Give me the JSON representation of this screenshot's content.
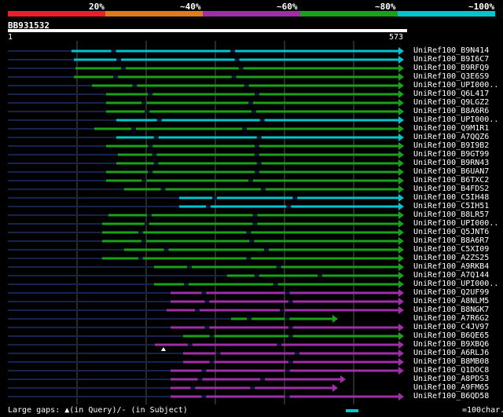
{
  "identity_bands": [
    {
      "label": "20%",
      "color": "#e8202a"
    },
    {
      "label": "~40%",
      "color": "#e07a1a"
    },
    {
      "label": "~60%",
      "color": "#a02ea8"
    },
    {
      "label": "~80%",
      "color": "#1aa11a"
    },
    {
      "label": "~100%",
      "color": "#00c4d0"
    }
  ],
  "query": {
    "id": "BB931532",
    "start": "1",
    "end": "573"
  },
  "hits": [
    {
      "name": "UniRef100_B9N414",
      "start": 91,
      "cls": "cyan"
    },
    {
      "name": "UniRef100_B9I6C7",
      "start": 94,
      "cls": "cyan"
    },
    {
      "name": "UniRef100_B9RFQ9",
      "start": 96,
      "cls": "green"
    },
    {
      "name": "UniRef100_Q3E6S9",
      "start": 94,
      "cls": "green"
    },
    {
      "name": "UniRef100_UPI000..",
      "start": 117,
      "cls": "green"
    },
    {
      "name": "UniRef100_Q6L417",
      "start": 135,
      "cls": "green"
    },
    {
      "name": "UniRef100_Q9LGZ2",
      "start": 135,
      "cls": "green"
    },
    {
      "name": "UniRef100_B8A6R6",
      "start": 135,
      "cls": "green"
    },
    {
      "name": "UniRef100_UPI000..",
      "start": 148,
      "cls": "cyan"
    },
    {
      "name": "UniRef100_Q9M1R1",
      "start": 120,
      "cls": "green"
    },
    {
      "name": "UniRef100_A7QQZ6",
      "start": 148,
      "cls": "cyan"
    },
    {
      "name": "UniRef100_B9I9B2",
      "start": 135,
      "cls": "green"
    },
    {
      "name": "UniRef100_B9GT99",
      "start": 150,
      "cls": "green"
    },
    {
      "name": "UniRef100_B9RN43",
      "start": 148,
      "cls": "green"
    },
    {
      "name": "UniRef100_B6UAN7",
      "start": 135,
      "cls": "green"
    },
    {
      "name": "UniRef100_B6TXC2",
      "start": 135,
      "cls": "green"
    },
    {
      "name": "UniRef100_B4FDS2",
      "start": 158,
      "cls": "green"
    },
    {
      "name": "UniRef100_C5IH48",
      "start": 228,
      "cls": "cyan"
    },
    {
      "name": "UniRef100_C5IH51",
      "start": 228,
      "cls": "cyan"
    },
    {
      "name": "UniRef100_B8LR57",
      "start": 138,
      "cls": "green"
    },
    {
      "name": "UniRef100_UPI000..",
      "start": 130,
      "cls": "green"
    },
    {
      "name": "UniRef100_Q5JNT6",
      "start": 130,
      "cls": "green"
    },
    {
      "name": "UniRef100_B8A6R7",
      "start": 130,
      "cls": "green"
    },
    {
      "name": "UniRef100_C5XI09",
      "start": 158,
      "cls": "green"
    },
    {
      "name": "UniRef100_A2ZS25",
      "start": 130,
      "cls": "green"
    },
    {
      "name": "UniRef100_A9RKB4",
      "start": 196,
      "cls": "green"
    },
    {
      "name": "UniRef100_A7Q144",
      "start": 289,
      "cls": "green"
    },
    {
      "name": "UniRef100_UPI000..",
      "start": 196,
      "cls": "green"
    },
    {
      "name": "UniRef100_Q2UF99",
      "start": 217,
      "cls": "purple"
    },
    {
      "name": "UniRef100_A8NLM5",
      "start": 217,
      "cls": "purple"
    },
    {
      "name": "UniRef100_B8NGK7",
      "start": 212,
      "cls": "purple"
    },
    {
      "name": "UniRef100_A7R6G2",
      "start": 294,
      "cls": "green",
      "end": 428
    },
    {
      "name": "UniRef100_C4JV97",
      "start": 217,
      "cls": "purple"
    },
    {
      "name": "UniRef100_B6QE65",
      "start": 233,
      "cls": "green"
    },
    {
      "name": "UniRef100_B9XBQ6",
      "start": 197,
      "cls": "purple",
      "gap": true
    },
    {
      "name": "UniRef100_A6RLJ6",
      "start": 233,
      "cls": "purple"
    },
    {
      "name": "UniRef100_B8MB08",
      "start": 233,
      "cls": "purple"
    },
    {
      "name": "UniRef100_Q1DOC8",
      "start": 217,
      "cls": "purple"
    },
    {
      "name": "UniRef100_A8PDS3",
      "start": 217,
      "cls": "purple",
      "end": 438
    },
    {
      "name": "UniRef100_A9FM65",
      "start": 217,
      "cls": "purple",
      "end": 428
    },
    {
      "name": "UniRef100_B6QD58",
      "start": 217,
      "cls": "purple"
    }
  ],
  "legend": {
    "gaps": "Large gaps: ▲(in Query)/- (in Subject)",
    "scale": "=100char."
  }
}
